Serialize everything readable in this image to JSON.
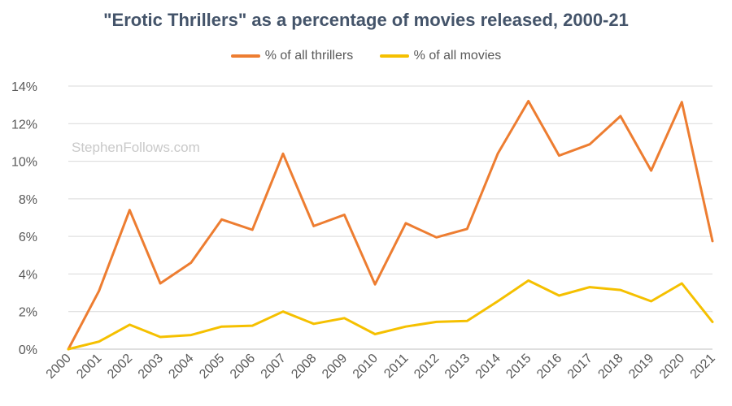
{
  "chart_data": {
    "type": "line",
    "title": "\"Erotic Thrillers\" as a percentage of movies released, 2000-21",
    "watermark": "StephenFollows.com",
    "x": [
      "2000",
      "2001",
      "2002",
      "2003",
      "2004",
      "2005",
      "2006",
      "2007",
      "2008",
      "2009",
      "2010",
      "2011",
      "2012",
      "2013",
      "2014",
      "2015",
      "2016",
      "2017",
      "2018",
      "2019",
      "2020",
      "2021"
    ],
    "ylim": [
      0,
      14
    ],
    "yticks": [
      0,
      2,
      4,
      6,
      8,
      10,
      12,
      14
    ],
    "ytick_labels": [
      "0%",
      "2%",
      "4%",
      "6%",
      "8%",
      "10%",
      "12%",
      "14%"
    ],
    "grid": true,
    "legend_position": "top-center",
    "series": [
      {
        "name": "% of all thrillers",
        "color": "#ed7d31",
        "values": [
          0.0,
          3.1,
          7.4,
          3.5,
          4.6,
          6.9,
          6.35,
          10.4,
          6.55,
          7.15,
          3.45,
          6.7,
          5.95,
          6.4,
          10.4,
          13.2,
          10.3,
          10.9,
          12.4,
          9.5,
          13.15,
          5.75
        ]
      },
      {
        "name": "% of all movies",
        "color": "#f5c000",
        "values": [
          0.0,
          0.4,
          1.3,
          0.65,
          0.75,
          1.2,
          1.25,
          2.0,
          1.35,
          1.65,
          0.8,
          1.2,
          1.45,
          1.5,
          2.55,
          3.65,
          2.85,
          3.3,
          3.15,
          2.55,
          3.5,
          1.45
        ]
      }
    ]
  }
}
